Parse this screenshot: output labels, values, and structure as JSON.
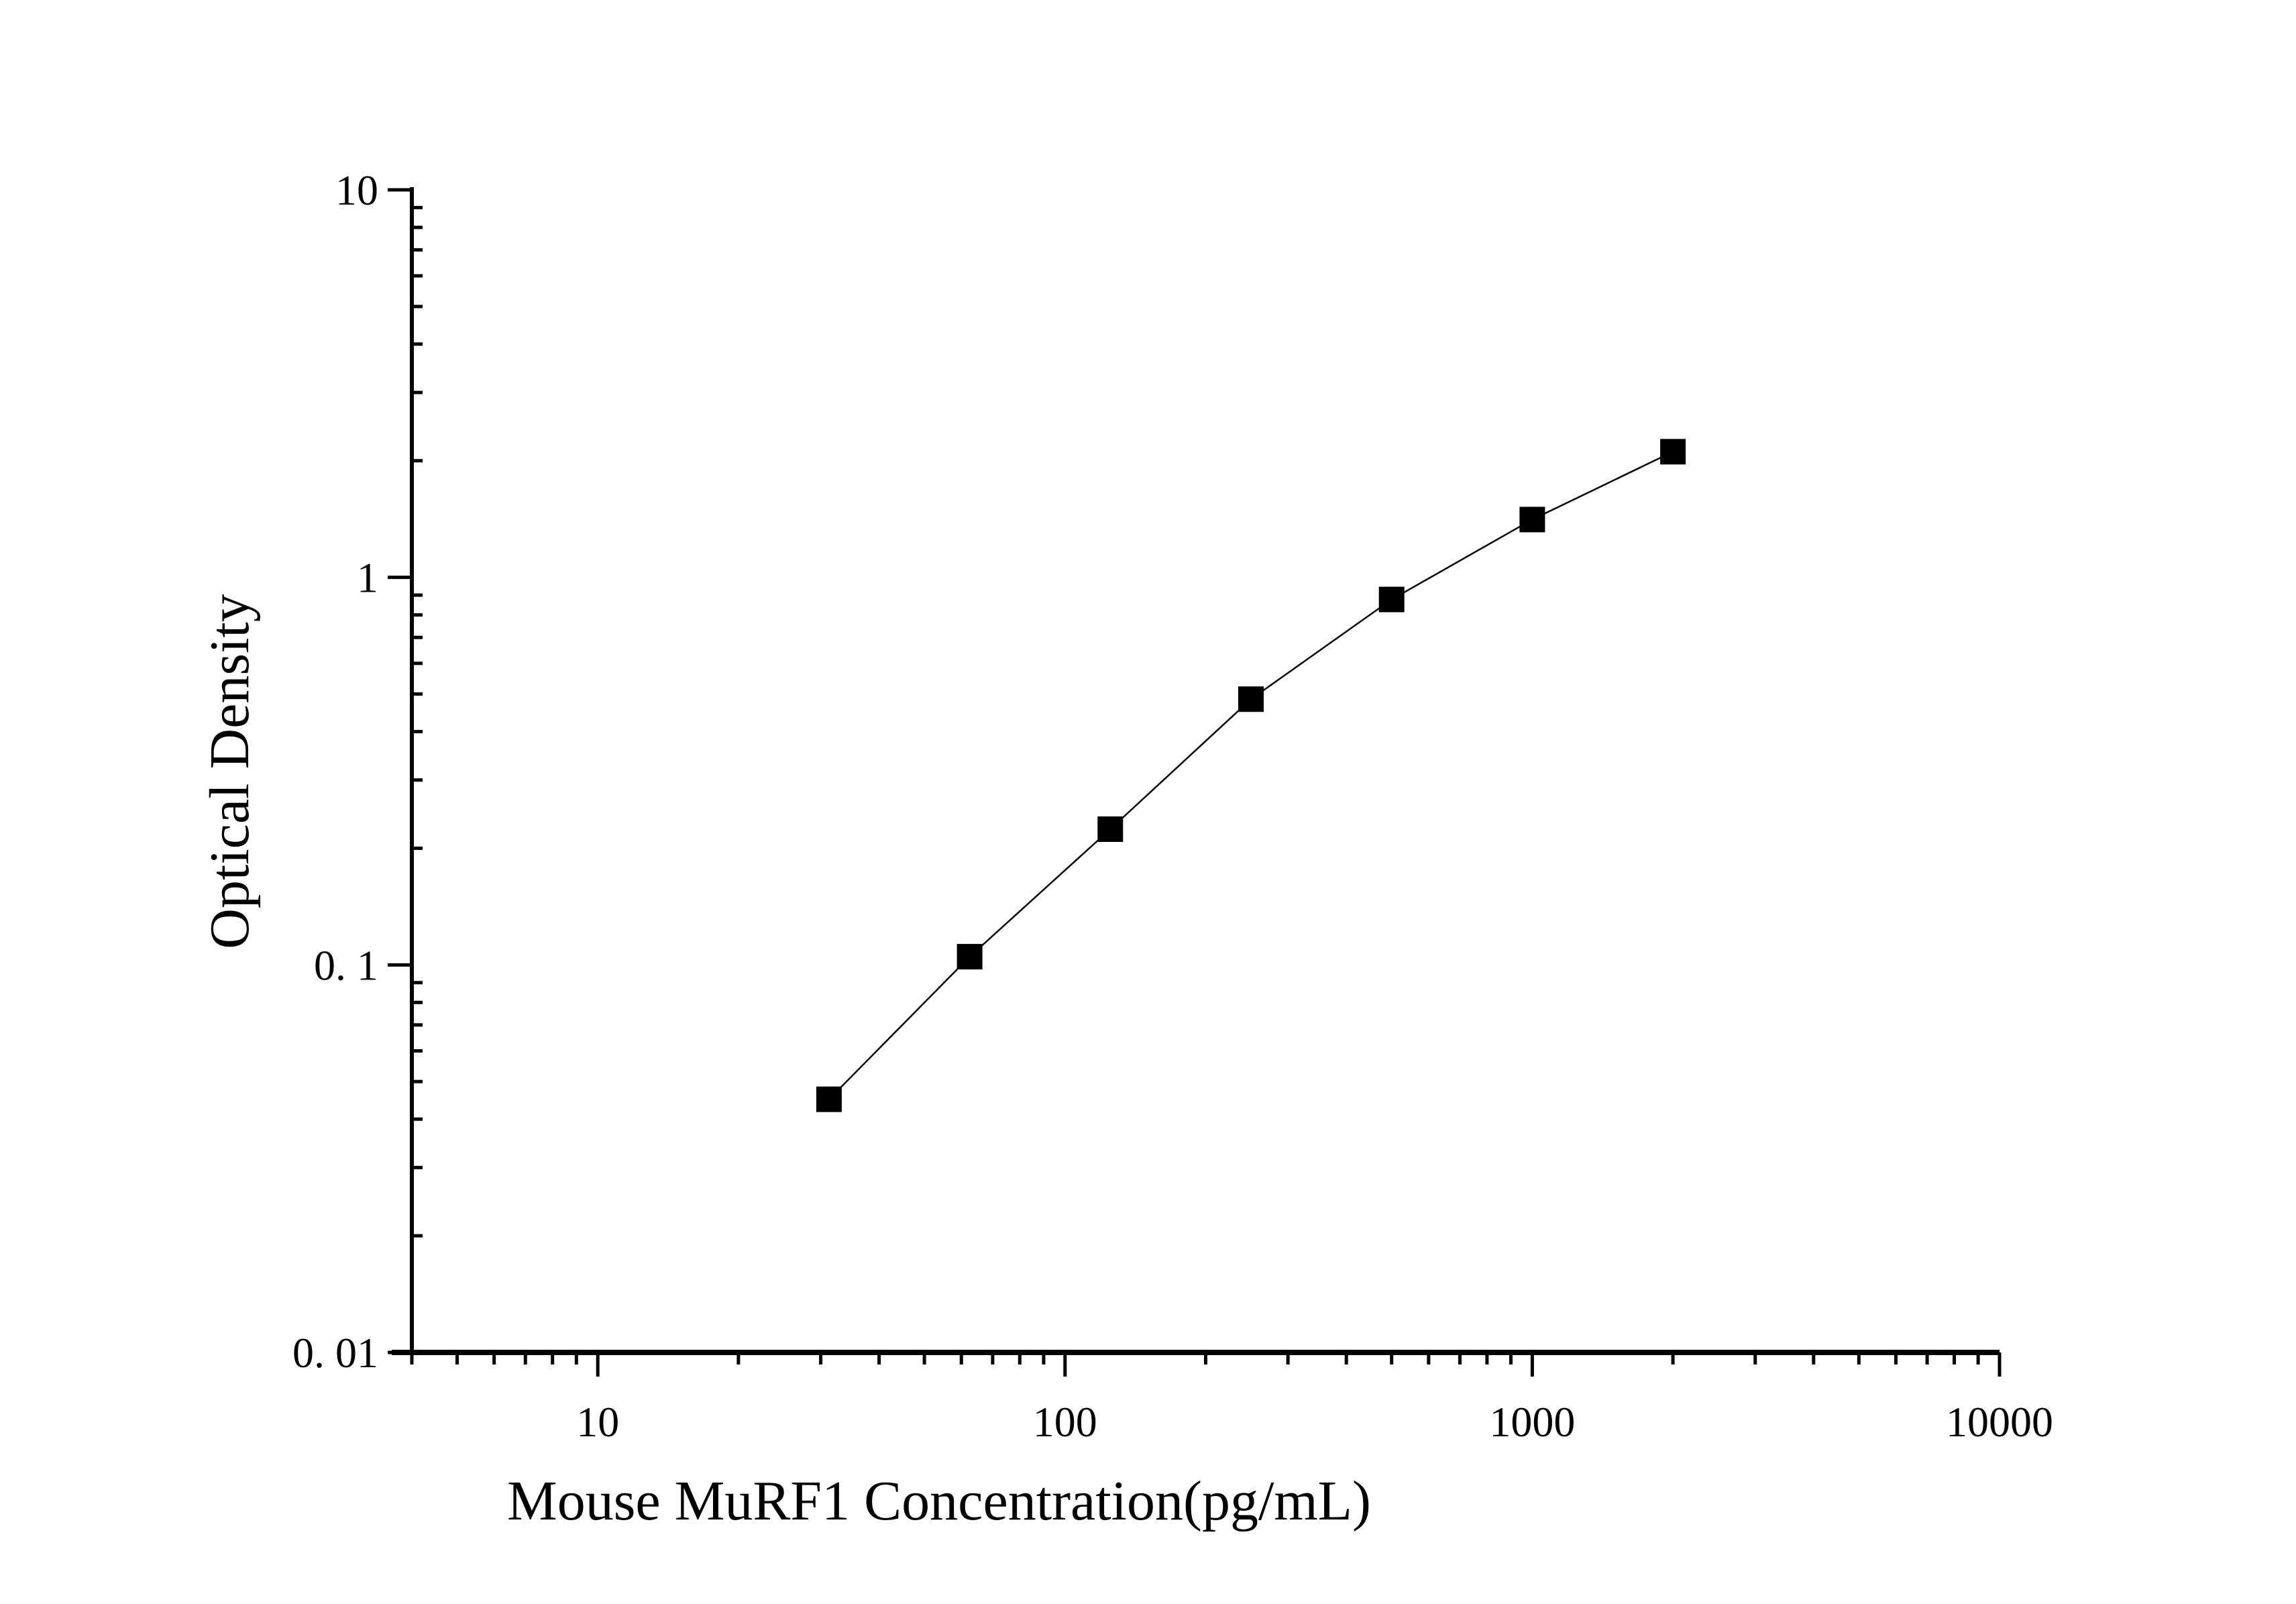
{
  "chart_data": {
    "type": "line",
    "title": "",
    "xlabel": "Mouse MuRF1 Concentration(pg/mL)",
    "ylabel": "Optical Density",
    "xscale": "log",
    "yscale": "log",
    "xlim": [
      4,
      10000
    ],
    "ylim": [
      0.01,
      10
    ],
    "x_ticks": [
      {
        "value": 10,
        "label": "10"
      },
      {
        "value": 100,
        "label": "100"
      },
      {
        "value": 1000,
        "label": "1000"
      },
      {
        "value": 10000,
        "label": "10000"
      }
    ],
    "y_ticks": [
      {
        "value": 0.01,
        "label": "0. 01"
      },
      {
        "value": 0.1,
        "label": "0. 1"
      },
      {
        "value": 1,
        "label": "1"
      },
      {
        "value": 10,
        "label": "10"
      }
    ],
    "grid": false,
    "marker": "square",
    "colors": {
      "series": "#000000"
    },
    "series": [
      {
        "x": [
          31.25,
          62.5,
          125,
          250,
          500,
          1000,
          2000
        ],
        "y": [
          0.045,
          0.105,
          0.224,
          0.485,
          0.877,
          1.41,
          2.11
        ]
      }
    ]
  }
}
